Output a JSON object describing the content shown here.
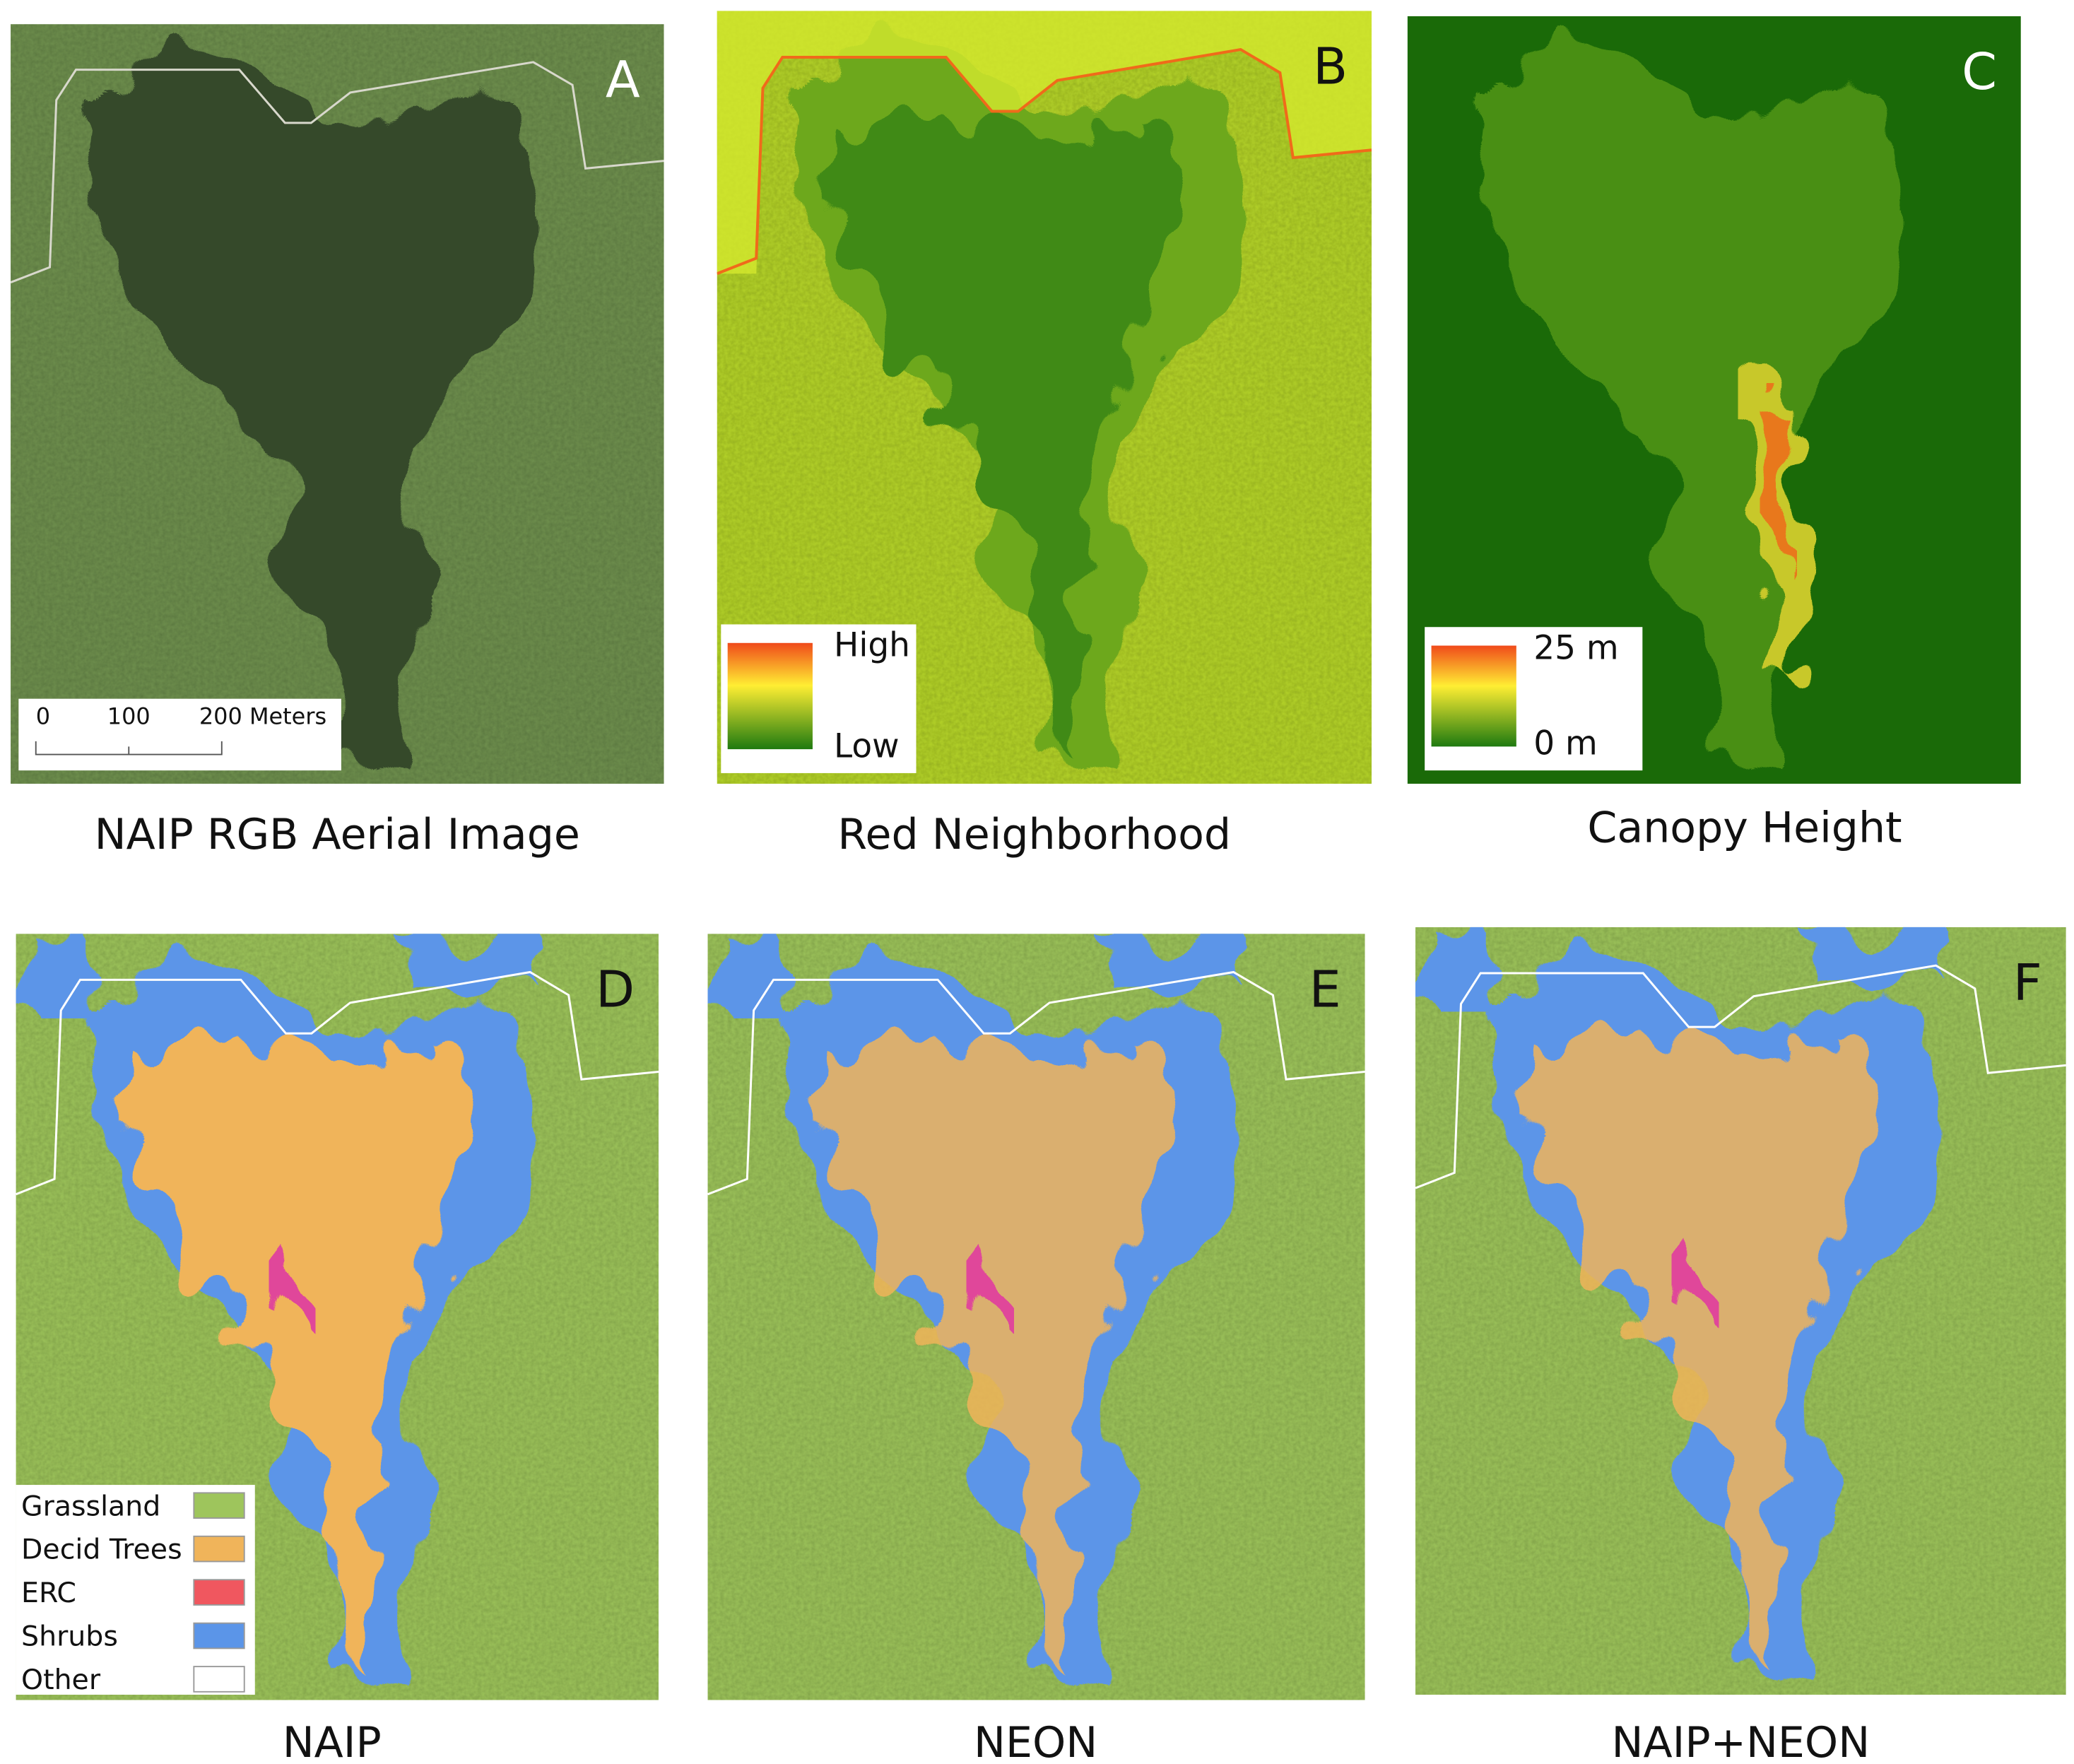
{
  "panels": [
    {
      "letter": "A",
      "caption": "NAIP RGB Aerial Image"
    },
    {
      "letter": "B",
      "caption": "Red Neighborhood"
    },
    {
      "letter": "C",
      "caption": "Canopy Height"
    },
    {
      "letter": "D",
      "caption": "NAIP"
    },
    {
      "letter": "E",
      "caption": "NEON"
    },
    {
      "letter": "F",
      "caption": "NAIP+NEON"
    }
  ],
  "scale_bar": {
    "labels": [
      "0",
      "100",
      "200 Meters"
    ]
  },
  "legend_b": {
    "high": "High",
    "low": "Low"
  },
  "legend_c": {
    "high": "25 m",
    "low": "0 m"
  },
  "land_cover_legend": [
    {
      "label": "Grassland",
      "color": "#9ec55c"
    },
    {
      "label": "Decid Trees",
      "color": "#f0b45a"
    },
    {
      "label": "ERC",
      "color": "#f0575f"
    },
    {
      "label": "Shrubs",
      "color": "#5b95e8"
    },
    {
      "label": "Other",
      "color": "#ffffff"
    }
  ]
}
